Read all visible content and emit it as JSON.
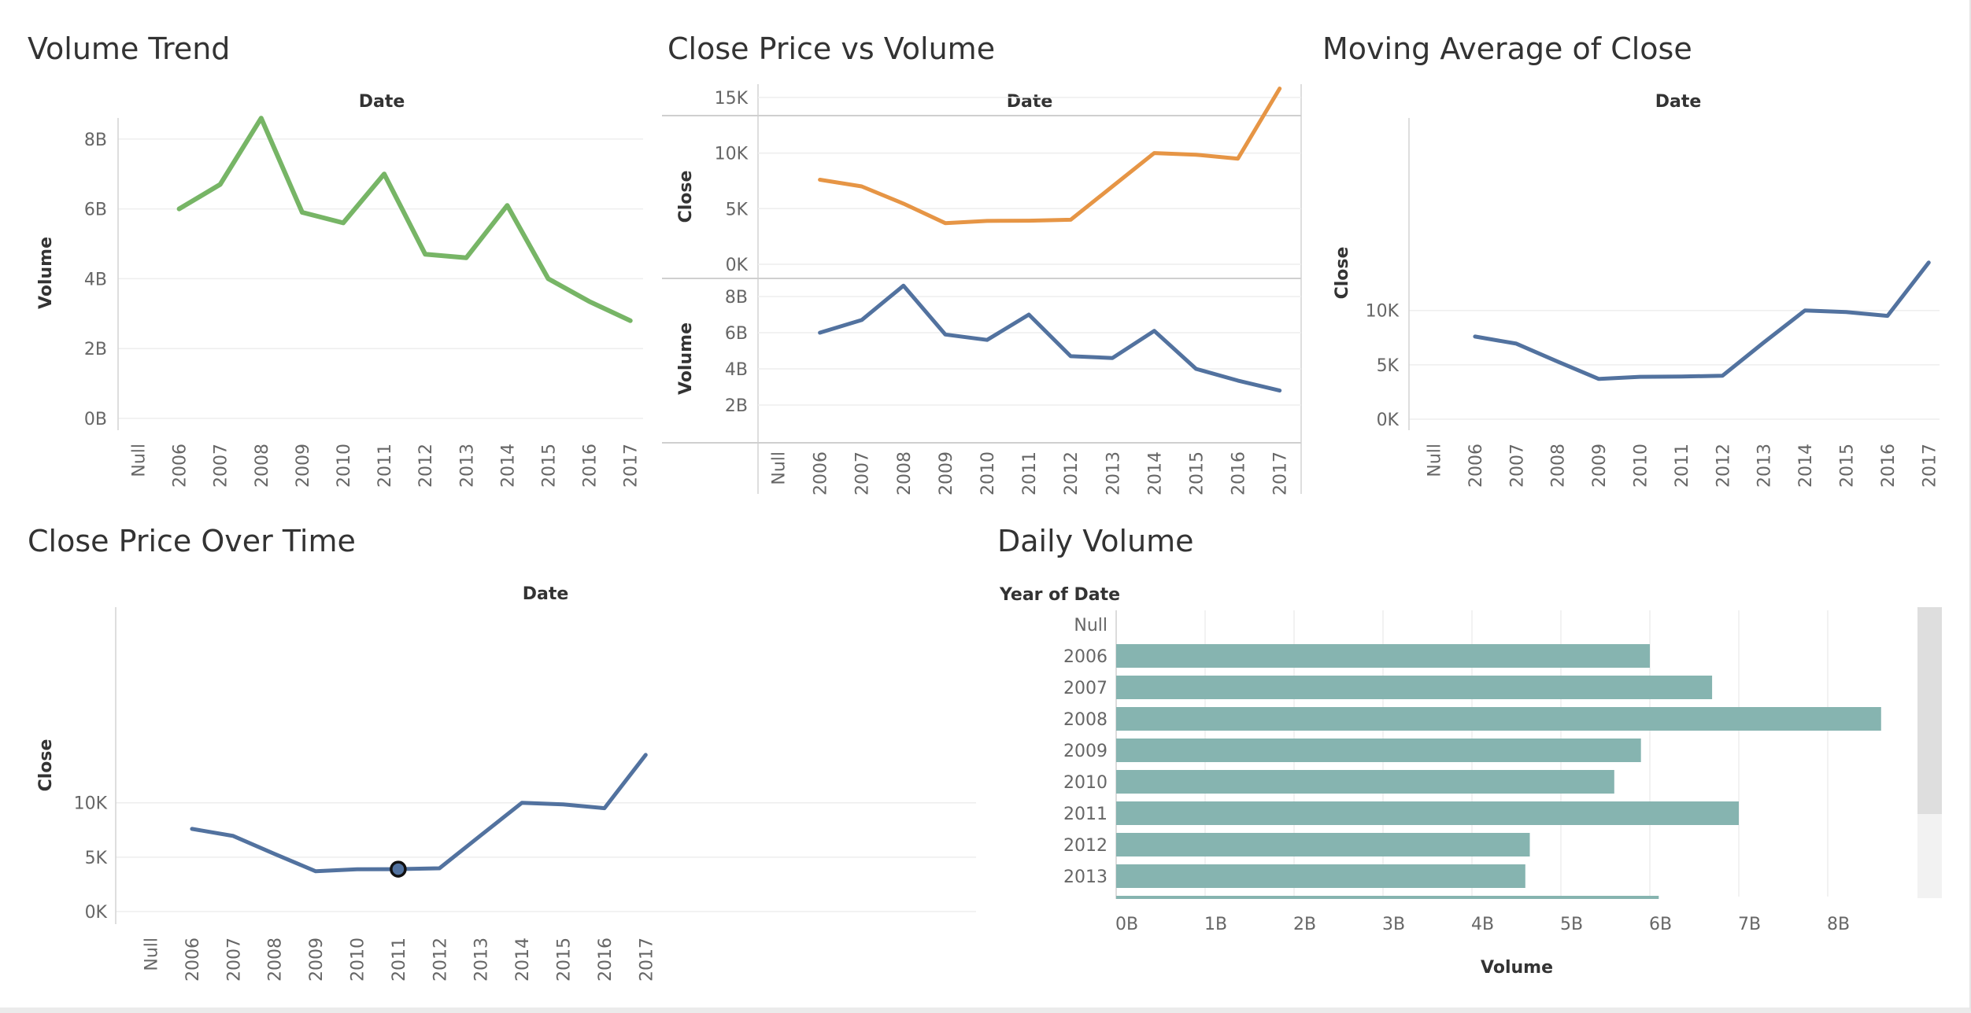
{
  "panels": {
    "volume_trend": {
      "title": "Volume Trend"
    },
    "close_vs_volume": {
      "title": "Close Price vs Volume"
    },
    "moving_avg": {
      "title": "Moving Average of Close"
    },
    "close_over_time": {
      "title": "Close Price Over Time"
    },
    "daily_volume": {
      "title": "Daily Volume"
    }
  },
  "colors": {
    "green": "#77b566",
    "orange": "#e69545",
    "blue": "#52729f",
    "teal": "#86b4b0",
    "grid": "#eeeeee",
    "axis": "#d4d4d4"
  },
  "chart_data": [
    {
      "id": "volume_trend",
      "type": "line",
      "xlabel": "Date",
      "ylabel": "Volume",
      "categories": [
        "Null",
        "2006",
        "2007",
        "2008",
        "2009",
        "2010",
        "2011",
        "2012",
        "2013",
        "2014",
        "2015",
        "2016",
        "2017"
      ],
      "series": [
        {
          "values": [
            null,
            6.0,
            6.7,
            8.6,
            5.9,
            5.6,
            7.0,
            4.7,
            4.6,
            6.1,
            4.0,
            3.35,
            2.8
          ]
        }
      ],
      "yticks": [
        "0B",
        "2B",
        "4B",
        "6B",
        "8B"
      ],
      "ylim": [
        0,
        9
      ]
    },
    {
      "id": "close_vs_volume",
      "type": "line",
      "xlabel": "Date",
      "categories": [
        "Null",
        "2006",
        "2007",
        "2008",
        "2009",
        "2010",
        "2011",
        "2012",
        "2013",
        "2014",
        "2015",
        "2016",
        "2017"
      ],
      "panes": [
        {
          "ylabel": "Close",
          "yticks": [
            "0K",
            "5K",
            "10K",
            "15K"
          ],
          "ylim": [
            0,
            15000
          ],
          "series": [
            {
              "values": [
                null,
                7600,
                7000,
                5450,
                3700,
                3900,
                3920,
                4000,
                7000,
                10000,
                9850,
                9500,
                15800
              ]
            }
          ]
        },
        {
          "ylabel": "Volume",
          "yticks": [
            "2B",
            "4B",
            "6B",
            "8B"
          ],
          "ylim": [
            0,
            8
          ],
          "series": [
            {
              "values": [
                null,
                6.0,
                6.7,
                8.6,
                5.9,
                5.6,
                7.0,
                4.7,
                4.6,
                6.1,
                4.0,
                3.35,
                2.8
              ]
            }
          ]
        }
      ]
    },
    {
      "id": "moving_avg",
      "type": "line",
      "xlabel": "Date",
      "ylabel": "Close",
      "categories": [
        "Null",
        "2006",
        "2007",
        "2008",
        "2009",
        "2010",
        "2011",
        "2012",
        "2013",
        "2014",
        "2015",
        "2016",
        "2017"
      ],
      "series": [
        {
          "values": [
            null,
            7600,
            6950,
            5300,
            3700,
            3900,
            3920,
            4000,
            7050,
            10000,
            9850,
            9500,
            14400
          ]
        }
      ],
      "yticks": [
        "0K",
        "5K",
        "10K"
      ],
      "ylim": [
        0,
        15000
      ]
    },
    {
      "id": "close_over_time",
      "type": "line",
      "xlabel": "Date",
      "ylabel": "Close",
      "categories": [
        "Null",
        "2006",
        "2007",
        "2008",
        "2009",
        "2010",
        "2011",
        "2012",
        "2013",
        "2014",
        "2015",
        "2016",
        "2017"
      ],
      "series": [
        {
          "values": [
            null,
            7600,
            6950,
            5300,
            3700,
            3880,
            3900,
            3980,
            7000,
            10000,
            9850,
            9500,
            14400
          ]
        }
      ],
      "yticks": [
        "0K",
        "5K",
        "10K"
      ],
      "ylim": [
        0,
        15000
      ],
      "highlight": "2011"
    },
    {
      "id": "daily_volume",
      "type": "bar",
      "xlabel": "Volume",
      "ylabel": "Year of Date",
      "categories": [
        "Null",
        "2006",
        "2007",
        "2008",
        "2009",
        "2010",
        "2011",
        "2012",
        "2013"
      ],
      "values": [
        null,
        6.0,
        6.7,
        8.6,
        5.9,
        5.6,
        7.0,
        4.65,
        4.6
      ],
      "partial_next_value": 6.1,
      "xticks": [
        "0B",
        "1B",
        "2B",
        "3B",
        "4B",
        "5B",
        "6B",
        "7B",
        "8B"
      ],
      "xlim": [
        0,
        9
      ]
    }
  ]
}
